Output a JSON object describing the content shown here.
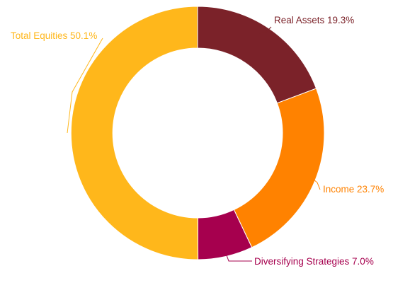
{
  "chart_data": {
    "type": "pie",
    "subtype": "donut",
    "legend": "none",
    "slices": [
      {
        "label": "Real Assets 19.3%",
        "name": "Real Assets",
        "value": 19.3,
        "color": "#7b2229"
      },
      {
        "label": "Income 23.7%",
        "name": "Income",
        "value": 23.7,
        "color": "#ff8200"
      },
      {
        "label": "Diversifying Strategies 7.0%",
        "name": "Diversifying Strategies",
        "value": 7.0,
        "color": "#a6004e"
      },
      {
        "label": "Total Equities 50.1%",
        "name": "Total Equities",
        "value": 50.1,
        "color": "#ffb71b"
      }
    ]
  }
}
